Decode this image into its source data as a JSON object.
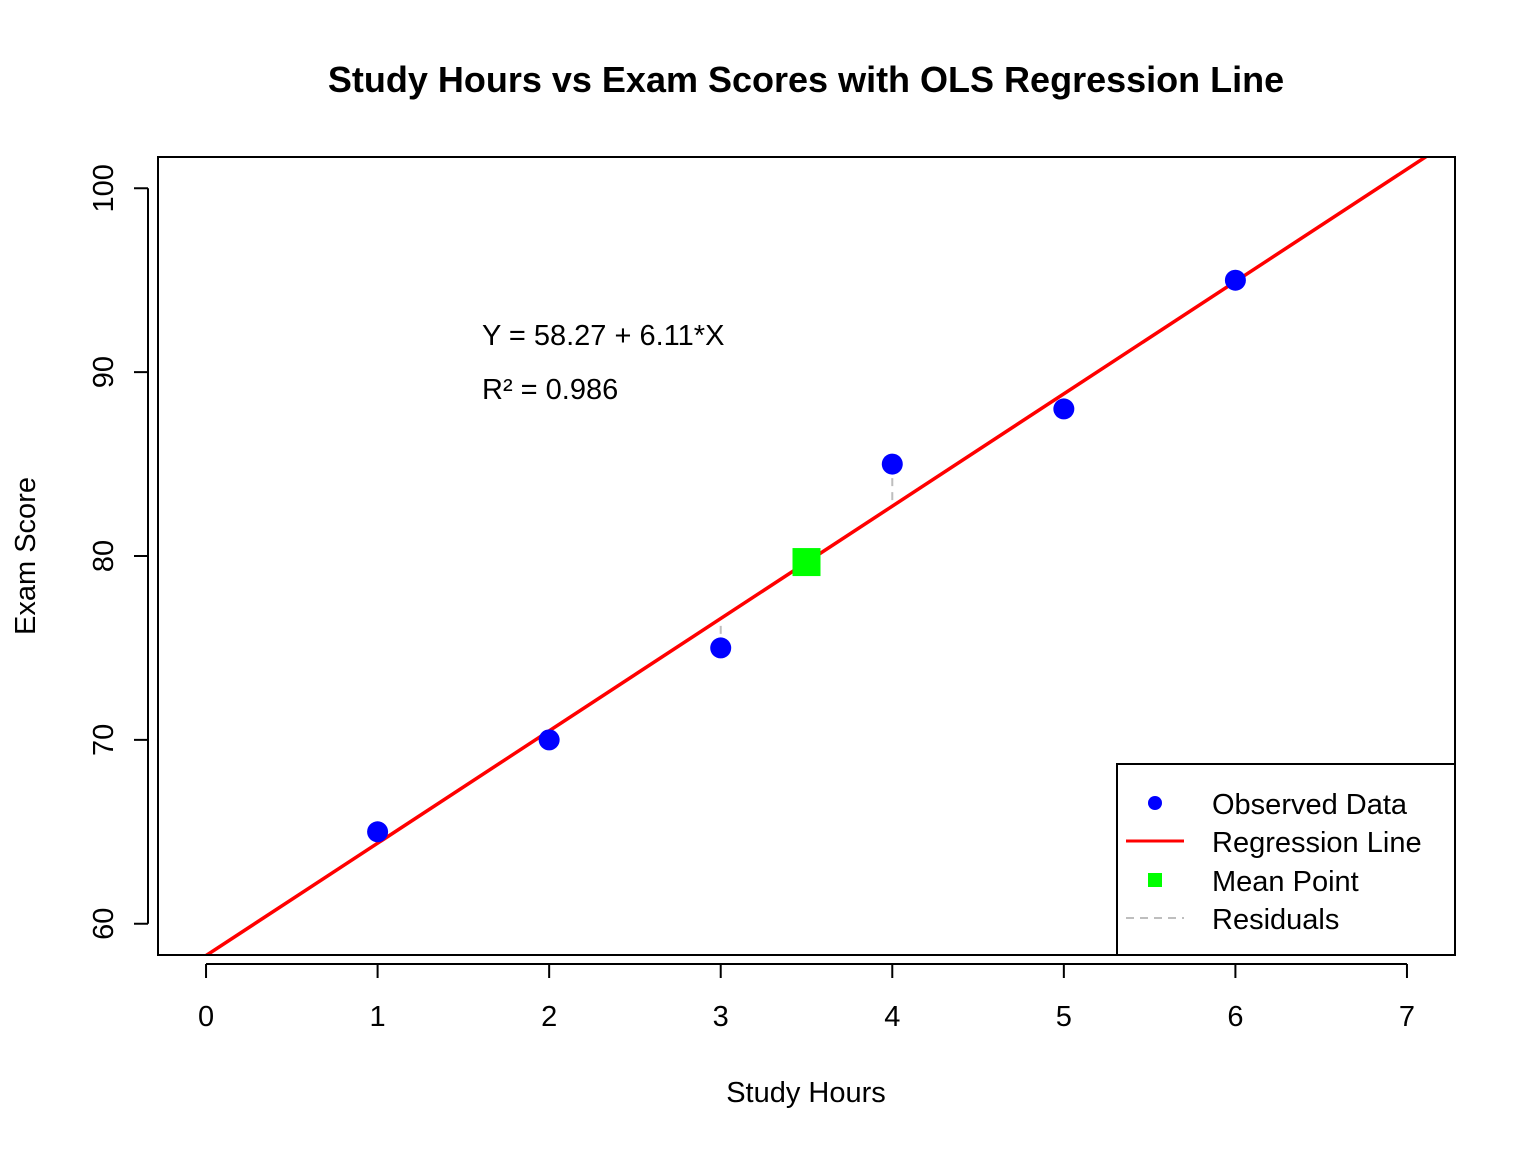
{
  "chart_data": {
    "type": "scatter",
    "title": "Study Hours vs Exam Scores with OLS Regression Line",
    "xlabel": "Study Hours",
    "ylabel": "Exam Score",
    "xlim": [
      -0.28,
      7.28
    ],
    "ylim": [
      58.3,
      101.7
    ],
    "xticks": [
      0,
      1,
      2,
      3,
      4,
      5,
      6,
      7
    ],
    "yticks": [
      60,
      70,
      80,
      90,
      100
    ],
    "grid": false,
    "series": [
      {
        "name": "Observed Data",
        "type": "scatter",
        "color": "#0000ff",
        "x": [
          1,
          2,
          3,
          4,
          5,
          6
        ],
        "y": [
          65,
          70,
          75,
          85,
          88,
          95
        ]
      }
    ],
    "regression": {
      "name": "Regression Line",
      "color": "#ff0000",
      "intercept": 58.27,
      "slope": 6.11
    },
    "mean_point": {
      "name": "Mean Point",
      "color": "#00ff00",
      "x": 3.5,
      "y": 79.67
    },
    "residuals": {
      "name": "Residuals",
      "color": "#bebebe"
    },
    "annotations": {
      "equation": "Y = 58.27 + 6.11*X",
      "r_squared": "R² = 0.986"
    },
    "legend": {
      "position": "bottom-right",
      "entries": [
        "Observed Data",
        "Regression Line",
        "Mean Point",
        "Residuals"
      ]
    }
  }
}
